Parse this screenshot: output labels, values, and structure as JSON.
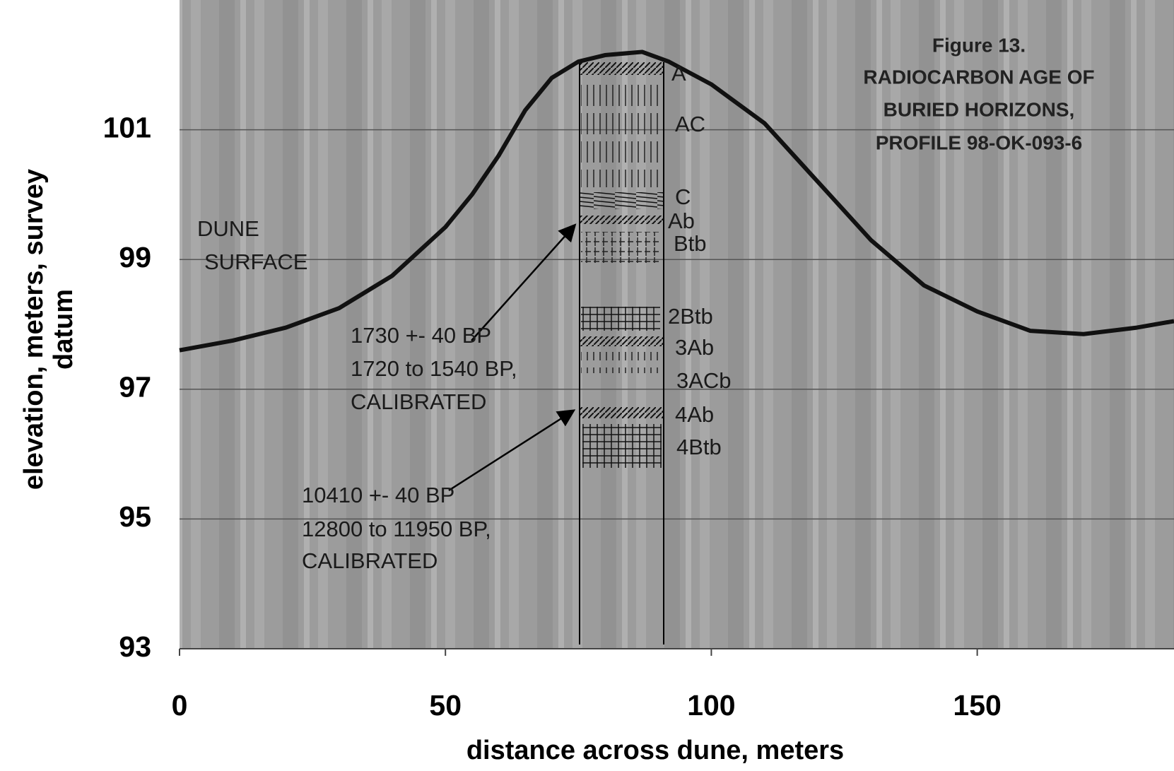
{
  "chart_data": {
    "type": "line",
    "title": [
      "Figure 13.",
      "RADIOCARBON AGE OF",
      "BURIED HORIZONS,",
      "PROFILE 98-OK-093-6"
    ],
    "xlabel": "distance across dune, meters",
    "ylabel": [
      "elevation, meters, survey",
      "datum"
    ],
    "x": [
      0,
      10,
      20,
      30,
      40,
      50,
      55,
      60,
      65,
      70,
      75,
      80,
      87,
      92,
      100,
      110,
      120,
      130,
      140,
      150,
      160,
      170,
      180,
      187
    ],
    "series": [
      {
        "color": "#111111",
        "values": [
          97.6,
          97.75,
          97.95,
          98.25,
          98.75,
          99.5,
          100.0,
          100.6,
          101.3,
          101.8,
          102.05,
          102.15,
          102.2,
          102.05,
          101.7,
          101.1,
          100.2,
          99.3,
          98.6,
          98.2,
          97.9,
          97.85,
          97.95,
          98.05
        ]
      }
    ],
    "xlim": [
      0,
      187
    ],
    "ylim": [
      93,
      103
    ],
    "xticks": [
      0,
      50,
      100,
      150
    ],
    "yticks": [
      93,
      95,
      97,
      99,
      101
    ],
    "grid": true,
    "annotations": {
      "dune": [
        "DUNE",
        "SURFACE"
      ],
      "date_upper": [
        "1730 +- 40  BP",
        "1720 to 1540 BP,",
        "CALIBRATED"
      ],
      "date_lower": [
        "10410 +- 40 BP",
        "12800 to 11950 BP,",
        "CALIBRATED"
      ],
      "horizons": [
        "A",
        "AC",
        "C",
        "Ab",
        "Btb",
        "2Btb",
        "3Ab",
        "3ACb",
        "4Ab",
        "4Btb"
      ]
    }
  }
}
